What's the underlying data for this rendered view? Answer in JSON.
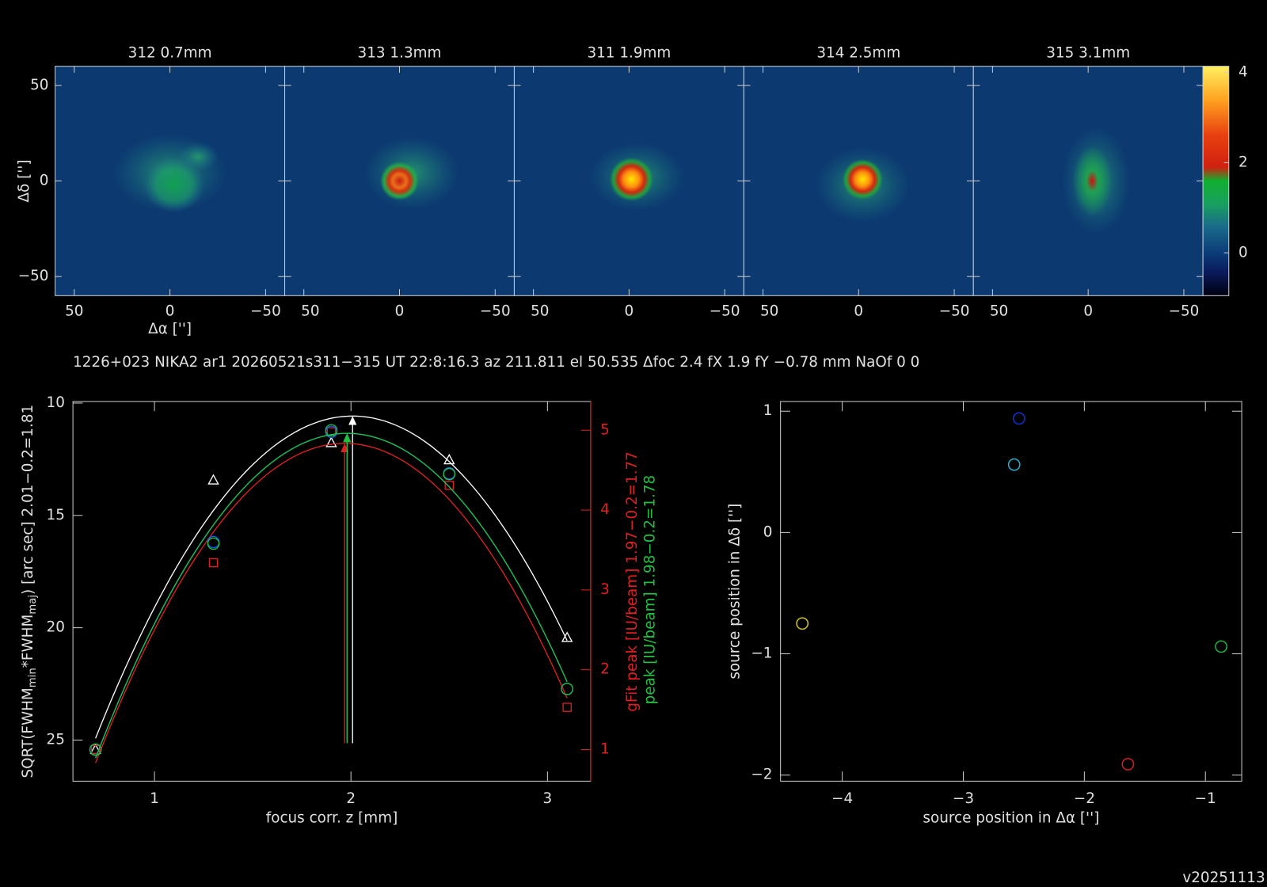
{
  "header": "1226+023 NIKA2 ar1 20260521s311−315 UT 22:8:16.3 az 211.811 el 50.535 Δfoc 2.4 fX 1.9 fY −0.78 mm NaOf 0 0",
  "version": "v20251113",
  "chart_data": [
    {
      "type": "image",
      "panels": [
        "312 0.7mm",
        "313 1.3mm",
        "311 1.9mm",
        "314 2.5mm",
        "315 3.1mm"
      ],
      "xlabel": "Δα ['']",
      "ylabel": "Δδ ['']",
      "xlim": [
        60,
        -60
      ],
      "ylim": [
        -60,
        60
      ],
      "xticks": [
        50,
        0,
        {
          "value": -50,
          "label": "−50"
        }
      ],
      "yticks": [
        50,
        0,
        {
          "value": -50,
          "label": "−50"
        }
      ],
      "colorbar": {
        "ylim": [
          -0.95,
          4.14
        ],
        "yticks": [
          0,
          2,
          4
        ]
      }
    },
    {
      "type": "scatter",
      "xlabel": "focus corr. z [mm]",
      "ylabel": [
        "SQRT(FWHM",
        "min",
        "*FWHM",
        "maj",
        ") [arc sec] 2.01−0.2=1.81"
      ],
      "y2label": "gFit peak [IU/beam] 1.97−0.2=1.77",
      "y2label2": "peak [IU/beam] 1.98−0.2=1.78",
      "x": [
        0.7,
        1.3,
        1.9,
        2.5,
        3.1
      ],
      "xlim": [
        0.585,
        3.22
      ],
      "xticks": [
        1,
        2,
        3
      ],
      "ylim": [
        26.83,
        9.93
      ],
      "yticks": [
        10,
        15,
        20,
        25
      ],
      "y2lim": [
        0.605,
        5.36
      ],
      "y2ticks": [
        1,
        2,
        3,
        4,
        5
      ],
      "series": [
        {
          "color": "#ffffff",
          "marker": "triangle",
          "values": [
            25.42,
            13.42,
            11.76,
            12.52,
            20.43
          ]
        },
        {
          "color": "#e02020",
          "marker": "square",
          "axis": "y2",
          "values": [
            1.0,
            3.34,
            4.98,
            4.31,
            1.53
          ]
        },
        {
          "color": "#1060ff",
          "marker": "circle",
          "axis": "y2",
          "values": [
            1.0,
            3.6,
            4.98,
            4.46,
            1.76
          ]
        },
        {
          "color": "#20c040",
          "marker": "circle",
          "axis": "y2",
          "values": [
            1.0,
            3.58,
            5.0,
            4.45,
            1.76
          ]
        }
      ]
    },
    {
      "type": "scatter",
      "xlabel": "source position in Δα ['']",
      "ylabel": "source position in Δδ ['']",
      "xlim": [
        -4.51,
        -0.7
      ],
      "xticks": [
        {
          "value": -4,
          "label": "−4"
        },
        {
          "value": -3,
          "label": "−3"
        },
        {
          "value": -2,
          "label": "−2"
        },
        {
          "value": -1,
          "label": "−1"
        }
      ],
      "ylim": [
        -2.05,
        1.08
      ],
      "yticks": [
        1,
        0,
        {
          "value": -1,
          "label": "−1"
        },
        {
          "value": -2,
          "label": "−2"
        }
      ],
      "x": [
        -4.33,
        -2.58,
        -2.54,
        -1.64,
        -0.87
      ],
      "values": [
        -0.75,
        0.56,
        0.94,
        -1.91,
        -0.94
      ],
      "colors": [
        "#d0c020",
        "#20b0d0",
        "#1030d0",
        "#d02020",
        "#20b040"
      ]
    }
  ]
}
